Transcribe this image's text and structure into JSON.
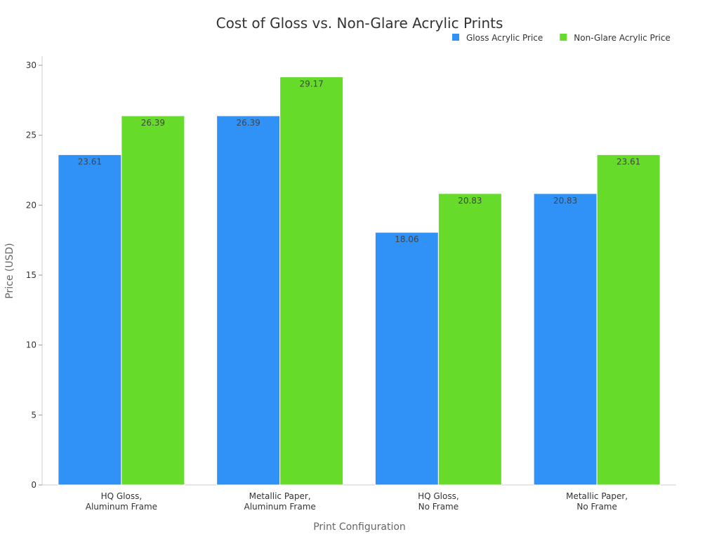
{
  "chart_data": {
    "type": "bar",
    "title": "Cost of Gloss vs. Non-Glare Acrylic Prints",
    "xlabel": "Print Configuration",
    "ylabel": "Price (USD)",
    "ylim": [
      0,
      30
    ],
    "yticks": [
      0,
      5,
      10,
      15,
      20,
      25,
      30
    ],
    "grid": false,
    "legend_position": "top-right",
    "categories": [
      [
        "HQ Gloss,",
        "Aluminum Frame"
      ],
      [
        "Metallic Paper,",
        "Aluminum Frame"
      ],
      [
        "HQ Gloss,",
        "No Frame"
      ],
      [
        "Metallic Paper,",
        "No Frame"
      ]
    ],
    "series": [
      {
        "name": "Gloss Acrylic Price",
        "color": "#3091F7",
        "values": [
          23.61,
          26.39,
          18.06,
          20.83
        ]
      },
      {
        "name": "Non-Glare Acrylic Price",
        "color": "#66DB2A",
        "values": [
          26.39,
          29.17,
          20.83,
          23.61
        ]
      }
    ]
  }
}
